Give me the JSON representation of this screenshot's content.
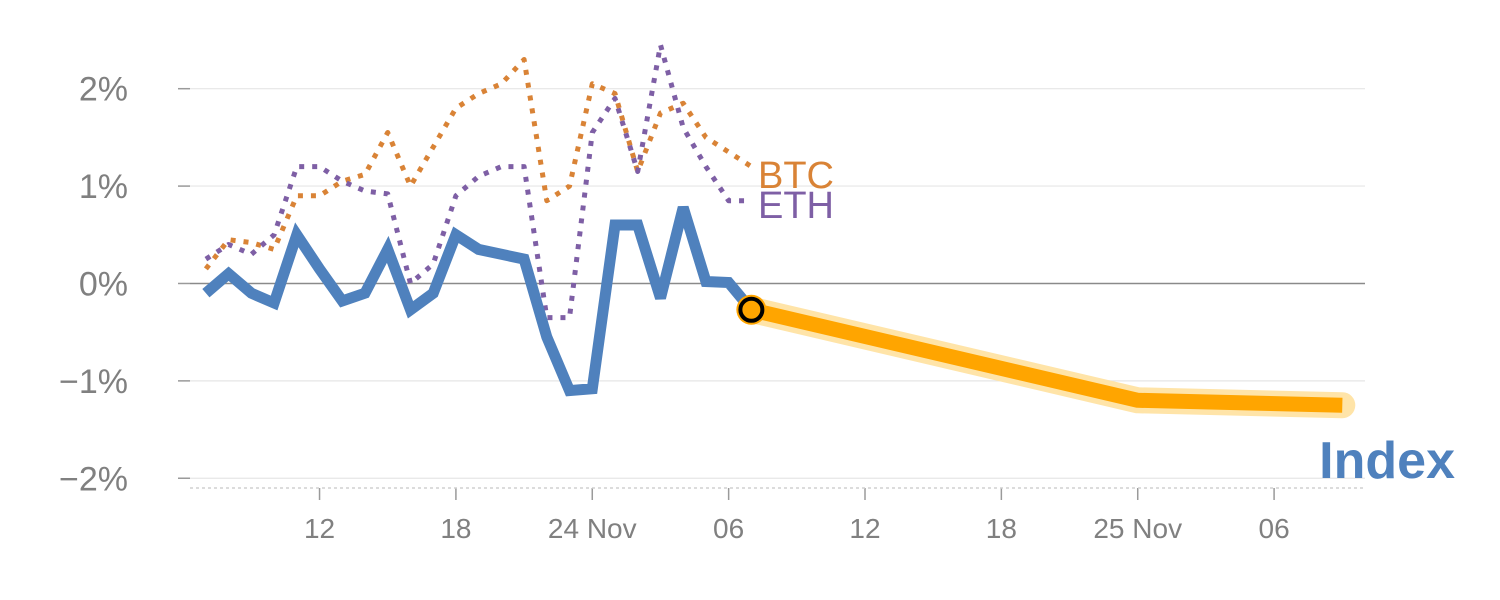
{
  "chart_data": {
    "type": "line",
    "x_ticks": [
      "12",
      "18",
      "24 Nov",
      "06",
      "12",
      "18",
      "25 Nov",
      "06"
    ],
    "y_ticks": [
      "2%",
      "1%",
      "0%",
      "−1%",
      "−2%"
    ],
    "y_tick_values": [
      2,
      1,
      0,
      -1,
      -2
    ],
    "x_tick_values": [
      5,
      11,
      17,
      23,
      29,
      35,
      41,
      47
    ],
    "xlim": [
      -0.7,
      51
    ],
    "ylim": [
      -2.1,
      2.5
    ],
    "grid": true,
    "series": [
      {
        "name": "BTC",
        "style": "dotted",
        "color": "#d98336",
        "x": [
          0,
          1,
          2,
          3,
          4,
          5,
          6,
          7,
          8,
          9,
          10,
          11,
          12,
          13,
          14,
          15,
          16,
          17,
          18,
          19,
          20,
          21,
          22,
          23,
          24
        ],
        "y": [
          0.15,
          0.45,
          0.42,
          0.35,
          0.9,
          0.9,
          1.05,
          1.12,
          1.55,
          1.0,
          1.4,
          1.8,
          1.95,
          2.05,
          2.3,
          0.85,
          1.0,
          2.05,
          1.95,
          1.15,
          1.75,
          1.85,
          1.5,
          1.35,
          1.2
        ]
      },
      {
        "name": "ETH",
        "style": "dotted",
        "color": "#7e5fa5",
        "x": [
          0,
          1,
          2,
          3,
          4,
          5,
          6,
          7,
          8,
          9,
          10,
          11,
          12,
          13,
          14,
          15,
          16,
          17,
          18,
          19,
          20,
          21,
          22,
          23,
          24
        ],
        "y": [
          0.25,
          0.4,
          0.3,
          0.5,
          1.2,
          1.2,
          1.05,
          0.95,
          0.92,
          0.0,
          0.2,
          0.9,
          1.1,
          1.2,
          1.2,
          -0.35,
          -0.35,
          1.55,
          1.9,
          1.15,
          2.45,
          1.6,
          1.2,
          0.85,
          0.85
        ]
      },
      {
        "name": "Index",
        "style": "solid",
        "color": "#4f81bd",
        "x": [
          0,
          1,
          2,
          3,
          4,
          5,
          6,
          7,
          8,
          9,
          10,
          11,
          12,
          13,
          14,
          15,
          16,
          17,
          18,
          19,
          20,
          21,
          22,
          23,
          24
        ],
        "y": [
          -0.1,
          0.1,
          -0.1,
          -0.2,
          0.5,
          0.15,
          -0.18,
          -0.1,
          0.35,
          -0.27,
          -0.1,
          0.5,
          0.35,
          0.3,
          0.25,
          -0.55,
          -1.1,
          -1.08,
          0.6,
          0.6,
          -0.15,
          0.78,
          0.02,
          0.01,
          -0.27
        ]
      },
      {
        "name": "Index",
        "style": "projection",
        "color": "#ffa500",
        "x": [
          24,
          41,
          50
        ],
        "y": [
          -0.27,
          -1.2,
          -1.25
        ]
      }
    ],
    "labels": {
      "btc": "BTC",
      "eth": "ETH",
      "index": "Index"
    }
  }
}
